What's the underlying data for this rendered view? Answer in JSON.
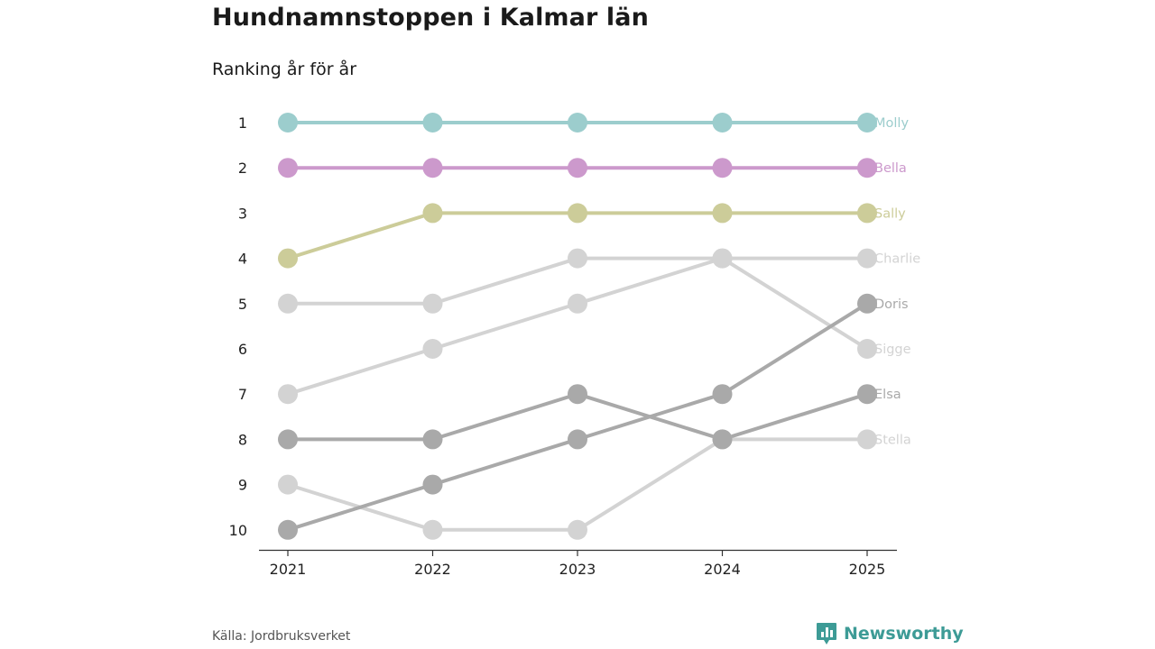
{
  "title": "Hundnamnstoppen i Kalmar län",
  "subtitle": "Ranking år för år",
  "source": "Källa: Jordbruksverket",
  "brand": "Newsworthy",
  "colors": {
    "brand": "#3d9b96"
  },
  "chart_data": {
    "type": "line",
    "variant": "bump",
    "x": [
      "2021",
      "2022",
      "2023",
      "2024",
      "2025"
    ],
    "y_ticks": [
      "1",
      "2",
      "3",
      "4",
      "5",
      "6",
      "7",
      "8",
      "9",
      "10"
    ],
    "ylim": [
      1,
      10
    ],
    "y_inverted": true,
    "series": [
      {
        "name": "Molly",
        "color": "#9ccdcd",
        "ranks": [
          1,
          1,
          1,
          1,
          1
        ]
      },
      {
        "name": "Bella",
        "color": "#cc99cc",
        "ranks": [
          2,
          2,
          2,
          2,
          2
        ]
      },
      {
        "name": "Sally",
        "color": "#cccc99",
        "ranks": [
          4,
          3,
          3,
          3,
          3
        ]
      },
      {
        "name": "Charlie",
        "color": "#d3d3d3",
        "ranks": [
          5,
          5,
          4,
          4,
          4
        ]
      },
      {
        "name": "Sigge",
        "color": "#d3d3d3",
        "ranks": [
          7,
          6,
          5,
          4,
          6
        ]
      },
      {
        "name": "Stella",
        "color": "#d3d3d3",
        "ranks": [
          9,
          10,
          10,
          8,
          8
        ]
      },
      {
        "name": "Doris",
        "color": "#a9a9a9",
        "ranks": [
          10,
          9,
          8,
          7,
          5
        ]
      },
      {
        "name": "Elsa",
        "color": "#a9a9a9",
        "ranks": [
          8,
          8,
          7,
          8,
          7
        ]
      }
    ]
  }
}
